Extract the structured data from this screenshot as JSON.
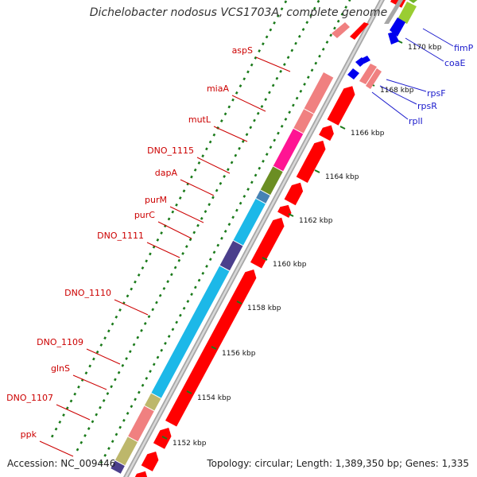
{
  "title": "Dichelobacter nodosus VCS1703A, complete genome",
  "footer": {
    "accession": "Accession: NC_009446",
    "topology": "Topology: circular; Length: 1,389,350 bp; Genes: 1,335"
  },
  "colors": {
    "background": "#ffffff",
    "gene_label": "#cc0000",
    "right_label": "#1a1acc",
    "ticks": "#1a7a1a",
    "cds_arrow": "#ff0000",
    "pink": "#f08080",
    "magenta": "#ff1493",
    "olive": "#6b8e23",
    "steel": "#4682b4",
    "cyan": "#1cb8e8",
    "purple": "#4b3f8c",
    "khaki": "#bdb76b",
    "blue": "#0000ee",
    "lime": "#9acd32"
  },
  "bp_ticks": [
    "1152 kbp",
    "1154 kbp",
    "1156 kbp",
    "1158 kbp",
    "1160 kbp",
    "1162 kbp",
    "1164 kbp",
    "1166 kbp",
    "1168 kbp",
    "1170 kbp"
  ],
  "left_genes": [
    "aspS",
    "miaA",
    "mutL",
    "DNO_1115",
    "dapA",
    "purM",
    "purC",
    "DNO_1111",
    "DNO_1110",
    "DNO_1109",
    "glnS",
    "DNO_1107",
    "ppk"
  ],
  "right_genes": [
    "fimP",
    "coaE",
    "rpsF",
    "rpsR",
    "rplI"
  ],
  "feature_icons": {
    "cds_arrow": "right-arrow-block",
    "blue_cds_arrow": "left-arrow-block"
  }
}
